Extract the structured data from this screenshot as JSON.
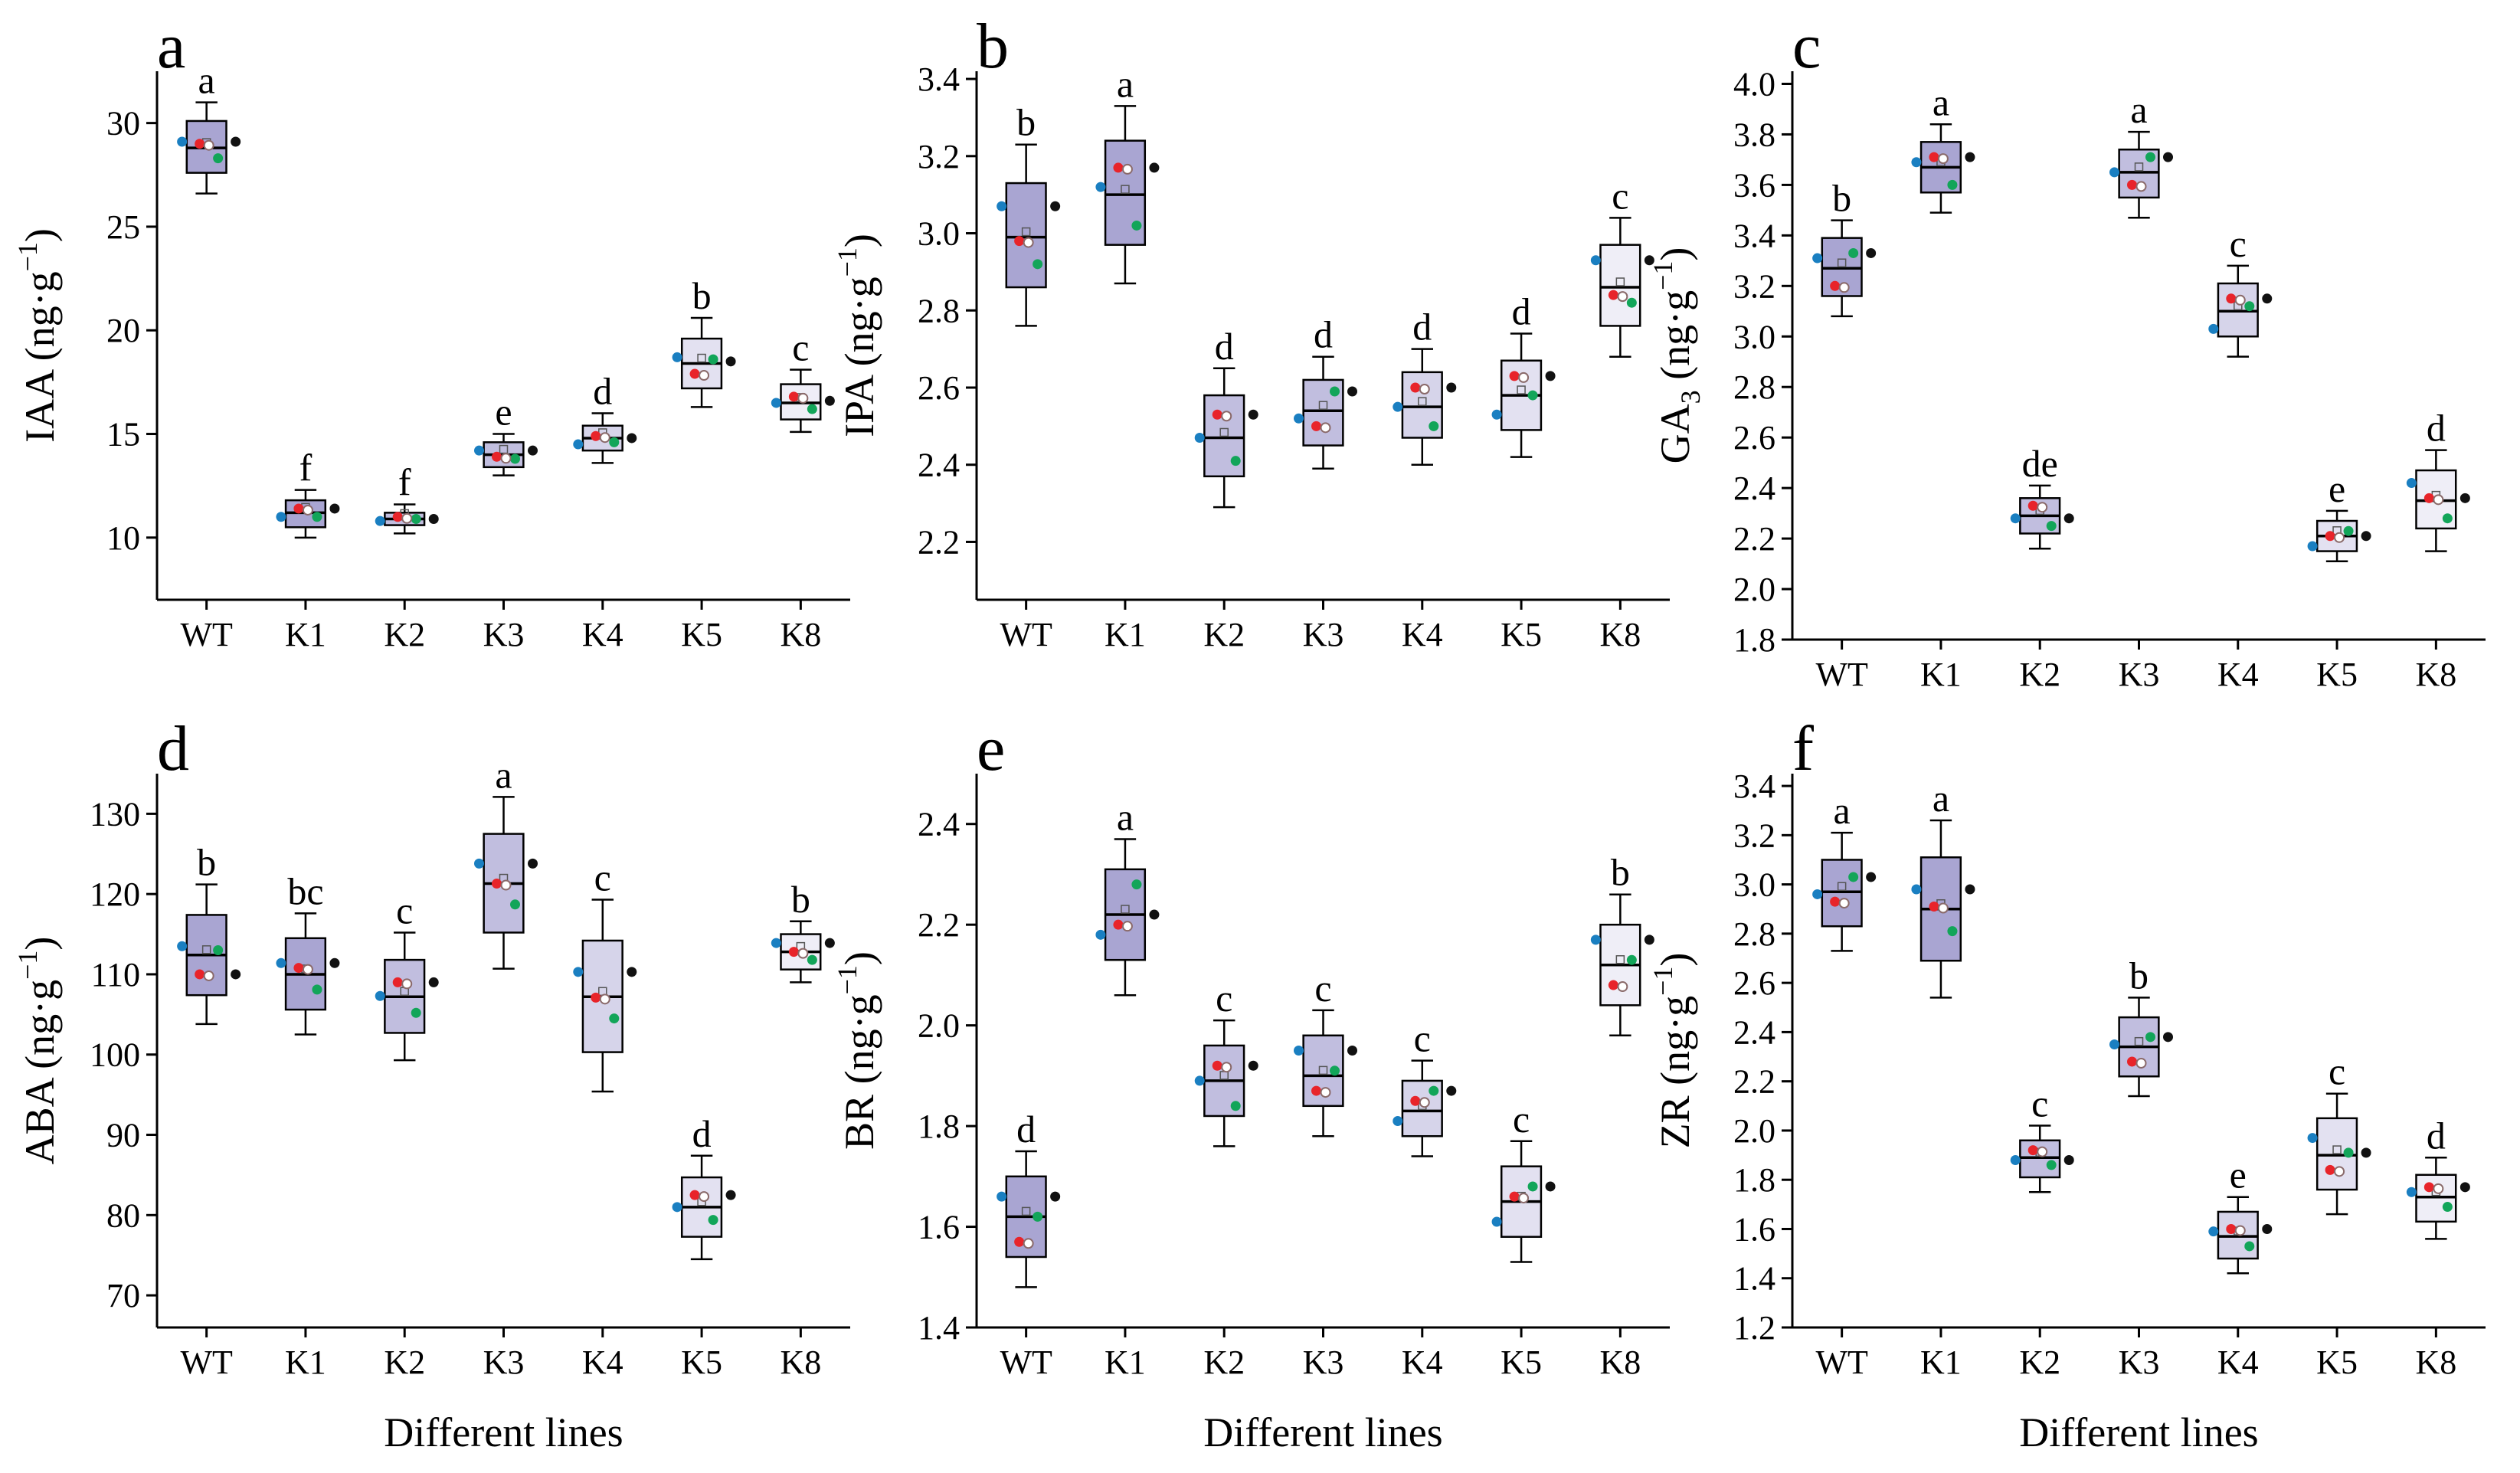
{
  "figure": {
    "xaxis_title": "Different lines"
  },
  "colors": {
    "box_fills": [
      "#a9a5d2",
      "#a9a5d2",
      "#c1bedf",
      "#c1bedf",
      "#d6d4ea",
      "#e3e1f1",
      "#efeef7"
    ],
    "dot_colors": [
      "#1a7fc1",
      "#e8242a",
      "#12a559",
      "#111111"
    ],
    "open_dot_color": "#8a6a6a"
  },
  "chart_data": [
    {
      "type": "box",
      "panel": "a",
      "title": "",
      "ylabel_main": "IAA (ng·g",
      "ylabel_sup": "−1",
      "ylabel_tail": ")",
      "xlabel": "",
      "categories": [
        "WT",
        "K1",
        "K2",
        "K3",
        "K4",
        "K5",
        "K8"
      ],
      "ylim": [
        7,
        32.5
      ],
      "yticks": [
        10,
        15,
        20,
        25,
        30
      ],
      "ytick_labels": [
        "10",
        "15",
        "20",
        "25",
        "30"
      ],
      "boxes": [
        {
          "low": 26.6,
          "q1": 27.6,
          "median": 28.8,
          "q3": 30.1,
          "high": 31.0,
          "letter": "a",
          "points": [
            29.1,
            29.0,
            28.3,
            29.1
          ]
        },
        {
          "low": 10.0,
          "q1": 10.5,
          "median": 11.2,
          "q3": 11.8,
          "high": 12.3,
          "letter": "f",
          "points": [
            11.0,
            11.4,
            11.0,
            11.4
          ]
        },
        {
          "low": 10.2,
          "q1": 10.6,
          "median": 10.9,
          "q3": 11.2,
          "high": 11.6,
          "letter": "f",
          "points": [
            10.8,
            11.0,
            10.9,
            10.9
          ]
        },
        {
          "low": 13.0,
          "q1": 13.4,
          "median": 14.0,
          "q3": 14.6,
          "high": 15.0,
          "letter": "e",
          "points": [
            14.2,
            13.9,
            13.8,
            14.2
          ]
        },
        {
          "low": 13.6,
          "q1": 14.2,
          "median": 14.8,
          "q3": 15.4,
          "high": 16.0,
          "letter": "d",
          "points": [
            14.5,
            14.9,
            14.6,
            14.8
          ]
        },
        {
          "low": 16.3,
          "q1": 17.2,
          "median": 18.4,
          "q3": 19.6,
          "high": 20.6,
          "letter": "b",
          "points": [
            18.7,
            17.9,
            18.6,
            18.5
          ]
        },
        {
          "low": 15.1,
          "q1": 15.7,
          "median": 16.5,
          "q3": 17.4,
          "high": 18.1,
          "letter": "c",
          "points": [
            16.5,
            16.8,
            16.2,
            16.6
          ]
        }
      ]
    },
    {
      "type": "box",
      "panel": "b",
      "title": "",
      "ylabel_main": "IPA (ng·g",
      "ylabel_sup": "−1",
      "ylabel_tail": ")",
      "xlabel": "",
      "categories": [
        "WT",
        "K1",
        "K2",
        "K3",
        "K4",
        "K5",
        "K8"
      ],
      "ylim": [
        2.05,
        3.42
      ],
      "yticks": [
        2.2,
        2.4,
        2.6,
        2.8,
        3.0,
        3.2,
        3.4
      ],
      "ytick_labels": [
        "2.2",
        "2.4",
        "2.6",
        "2.8",
        "3.0",
        "3.2",
        "3.4"
      ],
      "boxes": [
        {
          "low": 2.76,
          "q1": 2.86,
          "median": 2.99,
          "q3": 3.13,
          "high": 3.23,
          "letter": "b",
          "points": [
            3.07,
            2.98,
            2.92,
            3.07
          ]
        },
        {
          "low": 2.87,
          "q1": 2.97,
          "median": 3.1,
          "q3": 3.24,
          "high": 3.33,
          "letter": "a",
          "points": [
            3.12,
            3.17,
            3.02,
            3.17
          ]
        },
        {
          "low": 2.29,
          "q1": 2.37,
          "median": 2.47,
          "q3": 2.58,
          "high": 2.65,
          "letter": "d",
          "points": [
            2.47,
            2.53,
            2.41,
            2.53
          ]
        },
        {
          "low": 2.39,
          "q1": 2.45,
          "median": 2.54,
          "q3": 2.62,
          "high": 2.68,
          "letter": "d",
          "points": [
            2.52,
            2.5,
            2.59,
            2.59
          ]
        },
        {
          "low": 2.4,
          "q1": 2.47,
          "median": 2.55,
          "q3": 2.64,
          "high": 2.7,
          "letter": "d",
          "points": [
            2.55,
            2.6,
            2.5,
            2.6
          ]
        },
        {
          "low": 2.42,
          "q1": 2.49,
          "median": 2.58,
          "q3": 2.67,
          "high": 2.74,
          "letter": "d",
          "points": [
            2.53,
            2.63,
            2.58,
            2.63
          ]
        },
        {
          "low": 2.68,
          "q1": 2.76,
          "median": 2.86,
          "q3": 2.97,
          "high": 3.04,
          "letter": "c",
          "points": [
            2.93,
            2.84,
            2.82,
            2.93
          ]
        }
      ]
    },
    {
      "type": "box",
      "panel": "c",
      "title": "",
      "ylabel_main": "GA",
      "ylabel_sub": "3",
      "ylabel_tail": " (ng·g",
      "ylabel_sup": "−1",
      "ylabel_end": ")",
      "xlabel": "",
      "categories": [
        "WT",
        "K1",
        "K2",
        "K3",
        "K4",
        "K5",
        "K8"
      ],
      "ylim": [
        1.8,
        4.05
      ],
      "yticks": [
        1.8,
        2.0,
        2.2,
        2.4,
        2.6,
        2.8,
        3.0,
        3.2,
        3.4,
        3.6,
        3.8,
        4.0
      ],
      "ytick_labels": [
        "1.8",
        "2.0",
        "2.2",
        "2.4",
        "2.6",
        "2.8",
        "3.0",
        "3.2",
        "3.4",
        "3.6",
        "3.8",
        "4.0"
      ],
      "boxes": [
        {
          "low": 3.08,
          "q1": 3.16,
          "median": 3.27,
          "q3": 3.39,
          "high": 3.46,
          "letter": "b",
          "points": [
            3.31,
            3.2,
            3.33,
            3.33
          ]
        },
        {
          "low": 3.49,
          "q1": 3.57,
          "median": 3.67,
          "q3": 3.77,
          "high": 3.84,
          "letter": "a",
          "points": [
            3.69,
            3.71,
            3.6,
            3.71
          ]
        },
        {
          "low": 2.16,
          "q1": 2.22,
          "median": 2.29,
          "q3": 2.36,
          "high": 2.41,
          "letter": "de",
          "points": [
            2.28,
            2.33,
            2.25,
            2.28
          ]
        },
        {
          "low": 3.47,
          "q1": 3.55,
          "median": 3.65,
          "q3": 3.74,
          "high": 3.81,
          "letter": "a",
          "points": [
            3.65,
            3.6,
            3.71,
            3.71
          ]
        },
        {
          "low": 2.92,
          "q1": 3.0,
          "median": 3.1,
          "q3": 3.21,
          "high": 3.28,
          "letter": "c",
          "points": [
            3.03,
            3.15,
            3.12,
            3.15
          ]
        },
        {
          "low": 2.11,
          "q1": 2.15,
          "median": 2.21,
          "q3": 2.27,
          "high": 2.31,
          "letter": "e",
          "points": [
            2.17,
            2.21,
            2.23,
            2.21
          ]
        },
        {
          "low": 2.15,
          "q1": 2.24,
          "median": 2.35,
          "q3": 2.47,
          "high": 2.55,
          "letter": "d",
          "points": [
            2.42,
            2.36,
            2.28,
            2.36
          ]
        }
      ]
    },
    {
      "type": "box",
      "panel": "d",
      "title": "",
      "ylabel_main": "ABA (ng·g",
      "ylabel_sup": "−1",
      "ylabel_tail": ")",
      "xlabel": "Different lines",
      "categories": [
        "WT",
        "K1",
        "K2",
        "K3",
        "K4",
        "K5",
        "K8"
      ],
      "ylim": [
        66,
        135
      ],
      "yticks": [
        70,
        80,
        90,
        100,
        110,
        120,
        130
      ],
      "ytick_labels": [
        "70",
        "80",
        "90",
        "100",
        "110",
        "120",
        "130"
      ],
      "boxes": [
        {
          "low": 103.8,
          "q1": 107.4,
          "median": 112.4,
          "q3": 117.4,
          "high": 121.2,
          "letter": "b",
          "points": [
            113.5,
            110.0,
            113.0,
            110.0
          ]
        },
        {
          "low": 102.5,
          "q1": 105.6,
          "median": 110.0,
          "q3": 114.5,
          "high": 117.6,
          "letter": "bc",
          "points": [
            111.4,
            110.8,
            108.1,
            111.4
          ]
        },
        {
          "low": 99.3,
          "q1": 102.7,
          "median": 107.2,
          "q3": 111.8,
          "high": 115.2,
          "letter": "c",
          "points": [
            107.3,
            109.0,
            105.2,
            109.0
          ]
        },
        {
          "low": 110.7,
          "q1": 115.2,
          "median": 121.3,
          "q3": 127.5,
          "high": 132.1,
          "letter": "a",
          "points": [
            123.8,
            121.3,
            118.7,
            123.8
          ]
        },
        {
          "low": 95.4,
          "q1": 100.3,
          "median": 107.2,
          "q3": 114.2,
          "high": 119.3,
          "letter": "c",
          "points": [
            110.3,
            107.1,
            104.5,
            110.3
          ]
        },
        {
          "low": 74.5,
          "q1": 77.3,
          "median": 81.0,
          "q3": 84.7,
          "high": 87.4,
          "letter": "d",
          "points": [
            81.0,
            82.5,
            79.4,
            82.5
          ]
        },
        {
          "low": 109.0,
          "q1": 110.6,
          "median": 112.8,
          "q3": 115.0,
          "high": 116.6,
          "letter": "b",
          "points": [
            113.9,
            112.8,
            111.8,
            113.9
          ]
        }
      ]
    },
    {
      "type": "box",
      "panel": "e",
      "title": "",
      "ylabel_main": "BR (ng·g",
      "ylabel_sup": "−1",
      "ylabel_tail": ")",
      "xlabel": "Different lines",
      "categories": [
        "WT",
        "K1",
        "K2",
        "K3",
        "K4",
        "K5",
        "K8"
      ],
      "ylim": [
        1.4,
        2.5
      ],
      "yticks": [
        1.4,
        1.6,
        1.8,
        2.0,
        2.2,
        2.4
      ],
      "ytick_labels": [
        "1.4",
        "1.6",
        "1.8",
        "2.0",
        "2.2",
        "2.4"
      ],
      "boxes": [
        {
          "low": 1.48,
          "q1": 1.54,
          "median": 1.62,
          "q3": 1.7,
          "high": 1.75,
          "letter": "d",
          "points": [
            1.66,
            1.57,
            1.62,
            1.66
          ]
        },
        {
          "low": 2.06,
          "q1": 2.13,
          "median": 2.22,
          "q3": 2.31,
          "high": 2.37,
          "letter": "a",
          "points": [
            2.18,
            2.2,
            2.28,
            2.22
          ]
        },
        {
          "low": 1.76,
          "q1": 1.82,
          "median": 1.89,
          "q3": 1.96,
          "high": 2.01,
          "letter": "c",
          "points": [
            1.89,
            1.92,
            1.84,
            1.92
          ]
        },
        {
          "low": 1.78,
          "q1": 1.84,
          "median": 1.9,
          "q3": 1.98,
          "high": 2.03,
          "letter": "c",
          "points": [
            1.95,
            1.87,
            1.91,
            1.95
          ]
        },
        {
          "low": 1.74,
          "q1": 1.78,
          "median": 1.83,
          "q3": 1.89,
          "high": 1.93,
          "letter": "c",
          "points": [
            1.81,
            1.85,
            1.87,
            1.87
          ]
        },
        {
          "low": 1.53,
          "q1": 1.58,
          "median": 1.65,
          "q3": 1.72,
          "high": 1.77,
          "letter": "c",
          "points": [
            1.61,
            1.66,
            1.68,
            1.68
          ]
        },
        {
          "low": 1.98,
          "q1": 2.04,
          "median": 2.12,
          "q3": 2.2,
          "high": 2.26,
          "letter": "b",
          "points": [
            2.17,
            2.08,
            2.13,
            2.17
          ]
        }
      ]
    },
    {
      "type": "box",
      "panel": "f",
      "title": "",
      "ylabel_main": "ZR (ng·g",
      "ylabel_sup": "−1",
      "ylabel_tail": ")",
      "xlabel": "Different lines",
      "categories": [
        "WT",
        "K1",
        "K2",
        "K3",
        "K4",
        "K5",
        "K8"
      ],
      "ylim": [
        1.2,
        3.45
      ],
      "yticks": [
        1.2,
        1.4,
        1.6,
        1.8,
        2.0,
        2.2,
        2.4,
        2.6,
        2.8,
        3.0,
        3.2,
        3.4
      ],
      "ytick_labels": [
        "1.2",
        "1.4",
        "1.6",
        "1.8",
        "2.0",
        "2.2",
        "2.4",
        "2.6",
        "2.8",
        "3.0",
        "3.2",
        "3.4"
      ],
      "boxes": [
        {
          "low": 2.73,
          "q1": 2.83,
          "median": 2.97,
          "q3": 3.1,
          "high": 3.21,
          "letter": "a",
          "points": [
            2.96,
            2.93,
            3.03,
            3.03
          ]
        },
        {
          "low": 2.54,
          "q1": 2.69,
          "median": 2.9,
          "q3": 3.11,
          "high": 3.26,
          "letter": "a",
          "points": [
            2.98,
            2.91,
            2.81,
            2.98
          ]
        },
        {
          "low": 1.75,
          "q1": 1.81,
          "median": 1.89,
          "q3": 1.96,
          "high": 2.02,
          "letter": "c",
          "points": [
            1.88,
            1.92,
            1.86,
            1.88
          ]
        },
        {
          "low": 2.14,
          "q1": 2.22,
          "median": 2.34,
          "q3": 2.46,
          "high": 2.54,
          "letter": "b",
          "points": [
            2.35,
            2.28,
            2.38,
            2.38
          ]
        },
        {
          "low": 1.42,
          "q1": 1.48,
          "median": 1.57,
          "q3": 1.67,
          "high": 1.73,
          "letter": "e",
          "points": [
            1.59,
            1.6,
            1.53,
            1.6
          ]
        },
        {
          "low": 1.66,
          "q1": 1.76,
          "median": 1.9,
          "q3": 2.05,
          "high": 2.15,
          "letter": "c",
          "points": [
            1.97,
            1.84,
            1.91,
            1.91
          ]
        },
        {
          "low": 1.56,
          "q1": 1.63,
          "median": 1.73,
          "q3": 1.82,
          "high": 1.89,
          "letter": "d",
          "points": [
            1.75,
            1.77,
            1.69,
            1.77
          ]
        }
      ]
    }
  ]
}
